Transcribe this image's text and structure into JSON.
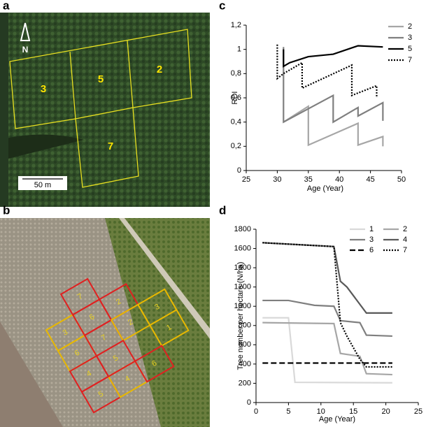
{
  "images": [
    {
      "label": "a",
      "texts": [
        "N",
        "50 m",
        "3",
        "5",
        "2",
        "7"
      ]
    },
    {
      "label": "b",
      "texts": [
        "7",
        "3",
        "6",
        "2",
        "6",
        "7",
        "2",
        "3",
        "4",
        "1",
        "5",
        "4",
        "6",
        "5"
      ]
    }
  ],
  "chart_data": [
    {
      "type": "line",
      "panel_label": "c",
      "ylabel": "RDI",
      "xlabel": "Age (Year)",
      "xlim": [
        25,
        50
      ],
      "xticks": [
        25,
        30,
        35,
        40,
        45,
        50
      ],
      "ylim": [
        0,
        1.2
      ],
      "yticks": [
        0,
        {
          "value": 0.2,
          "label": "0,2"
        },
        {
          "value": 0.4,
          "label": "0,4"
        },
        {
          "value": 0.6,
          "label": "0,6"
        },
        {
          "value": 0.8,
          "label": "0,8"
        },
        1,
        {
          "value": 1.2,
          "label": "1,2"
        }
      ],
      "legend": "top-right",
      "legend_columns": 1,
      "series": [
        {
          "name": "2",
          "color": "#a6a6a6",
          "dash": "solid",
          "x": [
            31,
            35,
            35,
            43,
            43,
            47,
            47
          ],
          "values": [
            0.4,
            0.53,
            0.21,
            0.39,
            0.21,
            0.28,
            0.2
          ]
        },
        {
          "name": "3",
          "color": "#7f7f7f",
          "dash": "solid",
          "x": [
            31,
            31,
            39,
            39,
            43,
            43,
            47,
            47
          ],
          "values": [
            1.02,
            0.4,
            0.62,
            0.4,
            0.52,
            0.45,
            0.56,
            0.41
          ]
        },
        {
          "name": "5",
          "color": "#000000",
          "dash": "solid",
          "x": [
            31,
            31,
            32,
            35,
            39,
            43,
            47
          ],
          "values": [
            1.0,
            0.86,
            0.89,
            0.94,
            0.96,
            1.03,
            1.02
          ]
        },
        {
          "name": "7",
          "color": "#000000",
          "dash": "dotted",
          "x": [
            30,
            30,
            31,
            34,
            34,
            42,
            42,
            46,
            46
          ],
          "values": [
            1.04,
            0.76,
            0.8,
            0.89,
            0.68,
            0.87,
            0.62,
            0.7,
            0.6
          ]
        }
      ]
    },
    {
      "type": "line",
      "panel_label": "d",
      "ylabel": "Tree number per hectare (N/ha)",
      "xlabel": "Age (Year)",
      "xlim": [
        0,
        25
      ],
      "xticks": [
        0,
        5,
        10,
        15,
        20,
        25
      ],
      "ylim": [
        0,
        1800
      ],
      "yticks": [
        0,
        200,
        400,
        600,
        800,
        1000,
        1200,
        1400,
        1600,
        1800
      ],
      "legend": "top-right",
      "legend_columns": 2,
      "series": [
        {
          "name": "1",
          "color": "#d9d9d9",
          "dash": "solid",
          "x": [
            1,
            5,
            6,
            21
          ],
          "values": [
            880,
            880,
            210,
            205
          ]
        },
        {
          "name": "2",
          "color": "#a6a6a6",
          "dash": "solid",
          "x": [
            1,
            12,
            13,
            16,
            17,
            21
          ],
          "values": [
            830,
            820,
            510,
            480,
            300,
            290
          ]
        },
        {
          "name": "3",
          "color": "#7f7f7f",
          "dash": "solid",
          "x": [
            1,
            5,
            9,
            12,
            13,
            16,
            17,
            21
          ],
          "values": [
            1060,
            1060,
            1010,
            1000,
            850,
            830,
            700,
            690
          ]
        },
        {
          "name": "4",
          "color": "#595959",
          "dash": "solid",
          "x": [
            1,
            12,
            13,
            14,
            17,
            21
          ],
          "values": [
            1660,
            1620,
            1260,
            1200,
            930,
            930
          ]
        },
        {
          "name": "6",
          "color": "#000000",
          "dash": "dashed",
          "x": [
            1,
            21
          ],
          "values": [
            410,
            410
          ]
        },
        {
          "name": "7",
          "color": "#000000",
          "dash": "dotted",
          "x": [
            1,
            12,
            13,
            14,
            16,
            17,
            21
          ],
          "values": [
            1660,
            1620,
            830,
            690,
            450,
            370,
            370
          ]
        }
      ]
    }
  ]
}
